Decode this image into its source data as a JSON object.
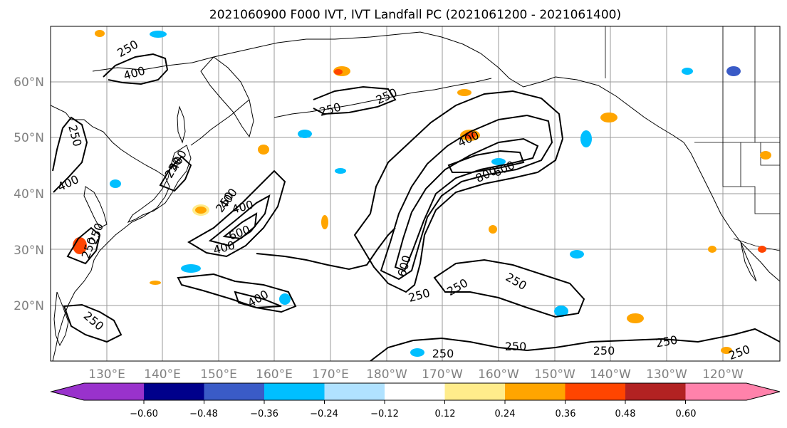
{
  "title": "2021060900 F000 IVT, IVT Landfall PC (2021061200 - 2021061400)",
  "lat_labels": [
    "60°N",
    "50°N",
    "40°N",
    "30°N",
    "20°N"
  ],
  "lon_labels": [
    "130°E",
    "140°E",
    "150°E",
    "160°E",
    "170°E",
    "180°W",
    "170°W",
    "160°W",
    "150°W",
    "140°W",
    "130°W",
    "120°W"
  ],
  "contour_labels": [
    "250",
    "400",
    "250",
    "250",
    "250",
    "400",
    "250",
    "400",
    "250",
    "400",
    "600",
    "400",
    "250",
    "400",
    "250",
    "400",
    "800",
    "600",
    "600",
    "250",
    "250",
    "250",
    "400",
    "250",
    "250",
    "250",
    "250",
    "250",
    "250"
  ],
  "colorbar": {
    "colors": [
      "#9932cc",
      "#00008b",
      "#3a5bc7",
      "#00bfff",
      "#b0e2ff",
      "#ffffff",
      "#ffec8b",
      "#ffa500",
      "#ff4500",
      "#b22222",
      "#ff82ab"
    ],
    "ticks": [
      "−0.60",
      "−0.48",
      "−0.36",
      "−0.24",
      "−0.12",
      "0.12",
      "0.24",
      "0.36",
      "0.48",
      "0.60"
    ],
    "extend": "both"
  }
}
